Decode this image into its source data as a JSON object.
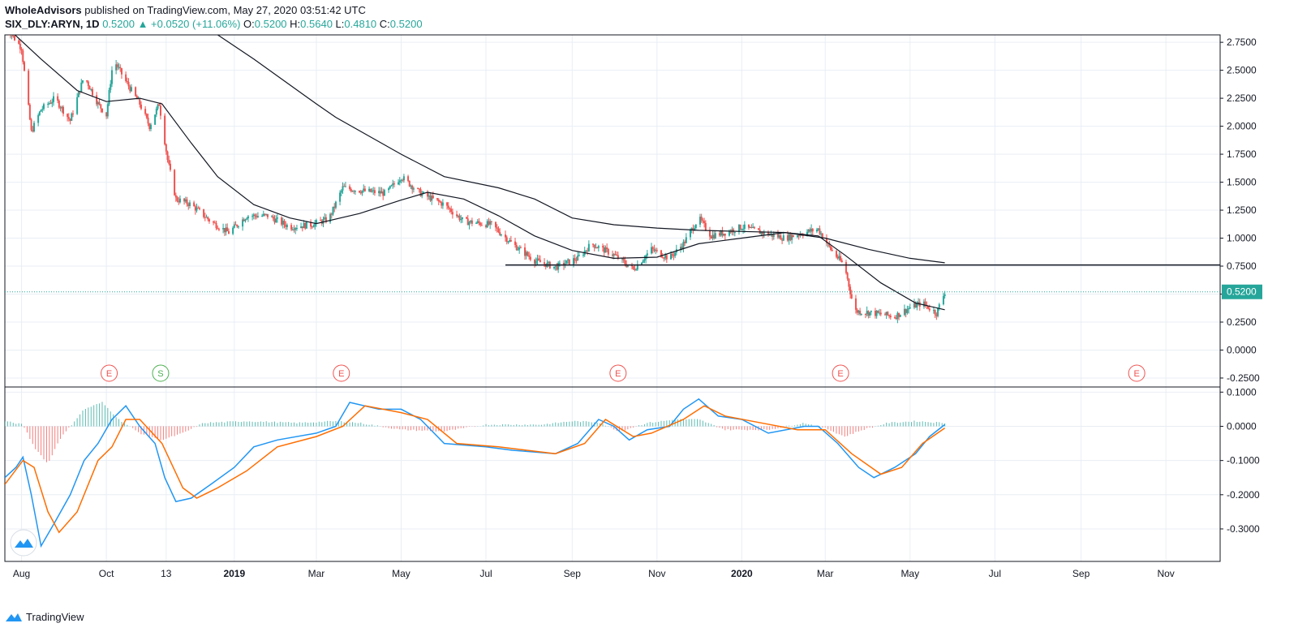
{
  "header": {
    "publisher": "WholeAdvisors",
    "published_text": "published on TradingView.com, May 27, 2020 03:51:42 UTC",
    "symbol": "SIX_DLY:ARYN, 1D",
    "last": "0.5200",
    "change": "▲ +0.0520 (+11.06%)",
    "o_label": "O:",
    "o": "0.5200",
    "h_label": "H:",
    "h": "0.5640",
    "l_label": "L:",
    "l": "0.4810",
    "c_label": "C:",
    "c": "0.5200"
  },
  "footer": {
    "brand": "TradingView"
  },
  "colors": {
    "up": "#26a69a",
    "down": "#ef5350",
    "ma": "#131722",
    "macd": "#2196f3",
    "signal": "#ff6d00",
    "grid": "#e9eef4",
    "price_tag": "#26a69a"
  },
  "chart_data": [
    {
      "type": "candlestick",
      "title": "",
      "x_ticks": [
        "Aug",
        "Oct",
        "13",
        "2019",
        "Mar",
        "May",
        "Jul",
        "Sep",
        "Nov",
        "2020",
        "Mar",
        "May",
        "Jul",
        "Sep",
        "Nov"
      ],
      "x_range": [
        "2018-07-20",
        "2020-12-10"
      ],
      "y_ticks": [
        "2.7500",
        "2.5000",
        "2.2500",
        "2.0000",
        "1.7500",
        "1.5000",
        "1.2500",
        "1.0000",
        "0.7500",
        "0.5000",
        "0.2500",
        "0.0000",
        "-0.2500"
      ],
      "ylim": [
        -0.33,
        2.78
      ],
      "last_price_label": "0.5200",
      "last_price": 0.52,
      "horizontal_line": {
        "y": 0.76,
        "from": "2019-07-15",
        "to": "2020-12-10"
      },
      "price_path": [
        [
          "2018-07-20",
          2.9
        ],
        [
          "2018-08-01",
          2.7
        ],
        [
          "2018-08-08",
          1.95
        ],
        [
          "2018-08-15",
          2.15
        ],
        [
          "2018-08-25",
          2.25
        ],
        [
          "2018-09-05",
          2.05
        ],
        [
          "2018-09-15",
          2.45
        ],
        [
          "2018-09-25",
          2.2
        ],
        [
          "2018-10-01",
          2.1
        ],
        [
          "2018-10-06",
          2.6
        ],
        [
          "2018-10-15",
          2.4
        ],
        [
          "2018-10-25",
          2.2
        ],
        [
          "2018-11-01",
          2.0
        ],
        [
          "2018-11-08",
          2.2
        ],
        [
          "2018-11-14",
          1.7
        ],
        [
          "2018-11-20",
          1.35
        ],
        [
          "2018-12-01",
          1.3
        ],
        [
          "2018-12-15",
          1.15
        ],
        [
          "2018-12-28",
          1.05
        ],
        [
          "2019-01-10",
          1.2
        ],
        [
          "2019-01-25",
          1.2
        ],
        [
          "2019-02-10",
          1.1
        ],
        [
          "2019-02-25",
          1.12
        ],
        [
          "2019-03-10",
          1.17
        ],
        [
          "2019-03-20",
          1.45
        ],
        [
          "2019-04-05",
          1.42
        ],
        [
          "2019-04-20",
          1.4
        ],
        [
          "2019-05-01",
          1.55
        ],
        [
          "2019-05-15",
          1.4
        ],
        [
          "2019-06-01",
          1.3
        ],
        [
          "2019-06-15",
          1.15
        ],
        [
          "2019-07-05",
          1.12
        ],
        [
          "2019-07-20",
          0.95
        ],
        [
          "2019-08-05",
          0.8
        ],
        [
          "2019-08-20",
          0.74
        ],
        [
          "2019-09-05",
          0.82
        ],
        [
          "2019-09-15",
          0.95
        ],
        [
          "2019-10-01",
          0.85
        ],
        [
          "2019-10-15",
          0.72
        ],
        [
          "2019-10-28",
          0.9
        ],
        [
          "2019-11-10",
          0.82
        ],
        [
          "2019-11-20",
          0.95
        ],
        [
          "2019-12-01",
          1.18
        ],
        [
          "2019-12-10",
          1.02
        ],
        [
          "2019-12-20",
          1.05
        ],
        [
          "2020-01-01",
          1.1
        ],
        [
          "2020-01-15",
          1.05
        ],
        [
          "2020-02-01",
          1.0
        ],
        [
          "2020-02-15",
          1.05
        ],
        [
          "2020-02-25",
          1.08
        ],
        [
          "2020-03-05",
          0.9
        ],
        [
          "2020-03-15",
          0.75
        ],
        [
          "2020-03-22",
          0.35
        ],
        [
          "2020-04-05",
          0.33
        ],
        [
          "2020-04-20",
          0.3
        ],
        [
          "2020-05-01",
          0.38
        ],
        [
          "2020-05-10",
          0.42
        ],
        [
          "2020-05-20",
          0.33
        ],
        [
          "2020-05-26",
          0.52
        ]
      ],
      "ma_fast_path": [
        [
          "2018-07-20",
          2.9
        ],
        [
          "2018-08-15",
          2.6
        ],
        [
          "2018-09-10",
          2.32
        ],
        [
          "2018-10-01",
          2.22
        ],
        [
          "2018-10-25",
          2.25
        ],
        [
          "2018-11-10",
          2.2
        ],
        [
          "2018-12-01",
          1.85
        ],
        [
          "2018-12-20",
          1.55
        ],
        [
          "2019-01-15",
          1.3
        ],
        [
          "2019-02-10",
          1.18
        ],
        [
          "2019-03-01",
          1.13
        ],
        [
          "2019-04-01",
          1.22
        ],
        [
          "2019-05-01",
          1.34
        ],
        [
          "2019-05-20",
          1.41
        ],
        [
          "2019-06-15",
          1.35
        ],
        [
          "2019-07-10",
          1.2
        ],
        [
          "2019-08-05",
          1.02
        ],
        [
          "2019-09-01",
          0.89
        ],
        [
          "2019-10-01",
          0.82
        ],
        [
          "2019-11-01",
          0.83
        ],
        [
          "2019-12-01",
          0.95
        ],
        [
          "2020-01-01",
          1.0
        ],
        [
          "2020-02-01",
          1.05
        ],
        [
          "2020-02-25",
          1.02
        ],
        [
          "2020-03-15",
          0.85
        ],
        [
          "2020-04-10",
          0.6
        ],
        [
          "2020-05-05",
          0.42
        ],
        [
          "2020-05-26",
          0.36
        ]
      ],
      "ma_slow_path": [
        [
          "2018-12-10",
          2.9
        ],
        [
          "2019-01-15",
          2.6
        ],
        [
          "2019-03-01",
          2.2
        ],
        [
          "2019-03-15",
          2.08
        ],
        [
          "2019-05-01",
          1.75
        ],
        [
          "2019-06-01",
          1.55
        ],
        [
          "2019-07-10",
          1.45
        ],
        [
          "2019-08-05",
          1.35
        ],
        [
          "2019-09-01",
          1.18
        ],
        [
          "2019-10-01",
          1.12
        ],
        [
          "2019-11-01",
          1.09
        ],
        [
          "2019-12-01",
          1.07
        ],
        [
          "2020-01-01",
          1.06
        ],
        [
          "2020-02-01",
          1.05
        ],
        [
          "2020-03-01",
          1.0
        ],
        [
          "2020-04-01",
          0.9
        ],
        [
          "2020-05-01",
          0.82
        ],
        [
          "2020-05-26",
          0.78
        ]
      ],
      "event_markers": [
        {
          "label": "E",
          "date": "2018-10-03",
          "kind": "earnings"
        },
        {
          "label": "S",
          "date": "2018-11-09",
          "kind": "split"
        },
        {
          "label": "E",
          "date": "2019-03-19",
          "kind": "earnings"
        },
        {
          "label": "E",
          "date": "2019-10-04",
          "kind": "earnings"
        },
        {
          "label": "E",
          "date": "2020-03-12",
          "kind": "earnings"
        },
        {
          "label": "E",
          "date": "2020-10-11",
          "kind": "earnings"
        }
      ]
    },
    {
      "type": "line",
      "title": "",
      "y_ticks": [
        "0.1000",
        "0.0000",
        "-0.1000",
        "-0.2000",
        "-0.3000"
      ],
      "ylim": [
        -0.395,
        0.115
      ],
      "series": [
        {
          "role": "macd",
          "points": [
            [
              "2018-07-20",
              -0.15
            ],
            [
              "2018-07-28",
              -0.12
            ],
            [
              "2018-08-02",
              -0.09
            ],
            [
              "2018-08-08",
              -0.2
            ],
            [
              "2018-08-15",
              -0.35
            ],
            [
              "2018-08-25",
              -0.28
            ],
            [
              "2018-09-05",
              -0.2
            ],
            [
              "2018-09-15",
              -0.1
            ],
            [
              "2018-09-25",
              -0.05
            ],
            [
              "2018-10-05",
              0.02
            ],
            [
              "2018-10-15",
              0.06
            ],
            [
              "2018-10-25",
              0.0
            ],
            [
              "2018-11-05",
              -0.05
            ],
            [
              "2018-11-12",
              -0.15
            ],
            [
              "2018-11-20",
              -0.22
            ],
            [
              "2018-12-01",
              -0.21
            ],
            [
              "2018-12-15",
              -0.17
            ],
            [
              "2019-01-01",
              -0.12
            ],
            [
              "2019-01-15",
              -0.06
            ],
            [
              "2019-02-01",
              -0.04
            ],
            [
              "2019-03-01",
              -0.02
            ],
            [
              "2019-03-15",
              0.0
            ],
            [
              "2019-03-25",
              0.07
            ],
            [
              "2019-04-15",
              0.05
            ],
            [
              "2019-05-01",
              0.05
            ],
            [
              "2019-05-15",
              0.02
            ],
            [
              "2019-06-01",
              -0.05
            ],
            [
              "2019-07-01",
              -0.06
            ],
            [
              "2019-07-20",
              -0.07
            ],
            [
              "2019-08-20",
              -0.08
            ],
            [
              "2019-09-05",
              -0.05
            ],
            [
              "2019-09-20",
              0.02
            ],
            [
              "2019-10-01",
              0.0
            ],
            [
              "2019-10-12",
              -0.04
            ],
            [
              "2019-10-25",
              -0.01
            ],
            [
              "2019-11-10",
              0.0
            ],
            [
              "2019-11-20",
              0.05
            ],
            [
              "2019-12-01",
              0.08
            ],
            [
              "2019-12-15",
              0.03
            ],
            [
              "2020-01-01",
              0.02
            ],
            [
              "2020-01-20",
              -0.02
            ],
            [
              "2020-02-15",
              0.0
            ],
            [
              "2020-02-25",
              0.0
            ],
            [
              "2020-03-10",
              -0.05
            ],
            [
              "2020-03-25",
              -0.12
            ],
            [
              "2020-04-05",
              -0.15
            ],
            [
              "2020-04-20",
              -0.12
            ],
            [
              "2020-05-05",
              -0.08
            ],
            [
              "2020-05-15",
              -0.03
            ],
            [
              "2020-05-26",
              0.005
            ]
          ]
        },
        {
          "role": "signal",
          "points": [
            [
              "2018-07-20",
              -0.17
            ],
            [
              "2018-08-02",
              -0.1
            ],
            [
              "2018-08-10",
              -0.12
            ],
            [
              "2018-08-20",
              -0.25
            ],
            [
              "2018-08-28",
              -0.31
            ],
            [
              "2018-09-10",
              -0.25
            ],
            [
              "2018-09-25",
              -0.1
            ],
            [
              "2018-10-05",
              -0.06
            ],
            [
              "2018-10-15",
              0.02
            ],
            [
              "2018-10-25",
              0.02
            ],
            [
              "2018-11-10",
              -0.05
            ],
            [
              "2018-11-25",
              -0.18
            ],
            [
              "2018-12-05",
              -0.21
            ],
            [
              "2018-12-20",
              -0.18
            ],
            [
              "2019-01-10",
              -0.13
            ],
            [
              "2019-02-01",
              -0.06
            ],
            [
              "2019-03-01",
              -0.03
            ],
            [
              "2019-03-20",
              0.0
            ],
            [
              "2019-04-05",
              0.06
            ],
            [
              "2019-05-01",
              0.04
            ],
            [
              "2019-05-20",
              0.02
            ],
            [
              "2019-06-10",
              -0.05
            ],
            [
              "2019-07-10",
              -0.06
            ],
            [
              "2019-08-20",
              -0.08
            ],
            [
              "2019-09-10",
              -0.05
            ],
            [
              "2019-09-25",
              0.02
            ],
            [
              "2019-10-15",
              -0.03
            ],
            [
              "2019-10-28",
              -0.02
            ],
            [
              "2019-11-20",
              0.02
            ],
            [
              "2019-12-05",
              0.06
            ],
            [
              "2019-12-20",
              0.03
            ],
            [
              "2020-01-15",
              0.01
            ],
            [
              "2020-02-10",
              -0.01
            ],
            [
              "2020-03-01",
              -0.01
            ],
            [
              "2020-03-20",
              -0.08
            ],
            [
              "2020-04-10",
              -0.14
            ],
            [
              "2020-04-25",
              -0.12
            ],
            [
              "2020-05-10",
              -0.05
            ],
            [
              "2020-05-26",
              -0.005
            ]
          ]
        }
      ],
      "histogram": [
        [
          "2018-07-20",
          0.015
        ],
        [
          "2018-08-02",
          0.005
        ],
        [
          "2018-08-10",
          -0.06
        ],
        [
          "2018-08-20",
          -0.11
        ],
        [
          "2018-08-28",
          -0.04
        ],
        [
          "2018-09-15",
          0.05
        ],
        [
          "2018-09-28",
          0.07
        ],
        [
          "2018-10-10",
          0.02
        ],
        [
          "2018-10-25",
          -0.02
        ],
        [
          "2018-11-10",
          -0.04
        ],
        [
          "2018-11-25",
          -0.02
        ],
        [
          "2018-12-10",
          0.01
        ],
        [
          "2019-01-10",
          0.015
        ],
        [
          "2019-02-15",
          0.01
        ],
        [
          "2019-03-15",
          0.015
        ],
        [
          "2019-04-01",
          0.01
        ],
        [
          "2019-05-01",
          -0.01
        ],
        [
          "2019-06-01",
          -0.015
        ],
        [
          "2019-07-01",
          0.005
        ],
        [
          "2019-08-10",
          0.005
        ],
        [
          "2019-09-01",
          0.015
        ],
        [
          "2019-09-20",
          0.012
        ],
        [
          "2019-10-05",
          -0.015
        ],
        [
          "2019-10-25",
          0.01
        ],
        [
          "2019-11-15",
          0.02
        ],
        [
          "2019-12-01",
          0.02
        ],
        [
          "2019-12-20",
          -0.01
        ],
        [
          "2020-01-20",
          -0.01
        ],
        [
          "2020-02-15",
          0.01
        ],
        [
          "2020-03-01",
          -0.005
        ],
        [
          "2020-03-15",
          -0.03
        ],
        [
          "2020-03-28",
          -0.01
        ],
        [
          "2020-04-15",
          0.01
        ],
        [
          "2020-05-05",
          0.015
        ],
        [
          "2020-05-26",
          0.01
        ]
      ]
    }
  ]
}
